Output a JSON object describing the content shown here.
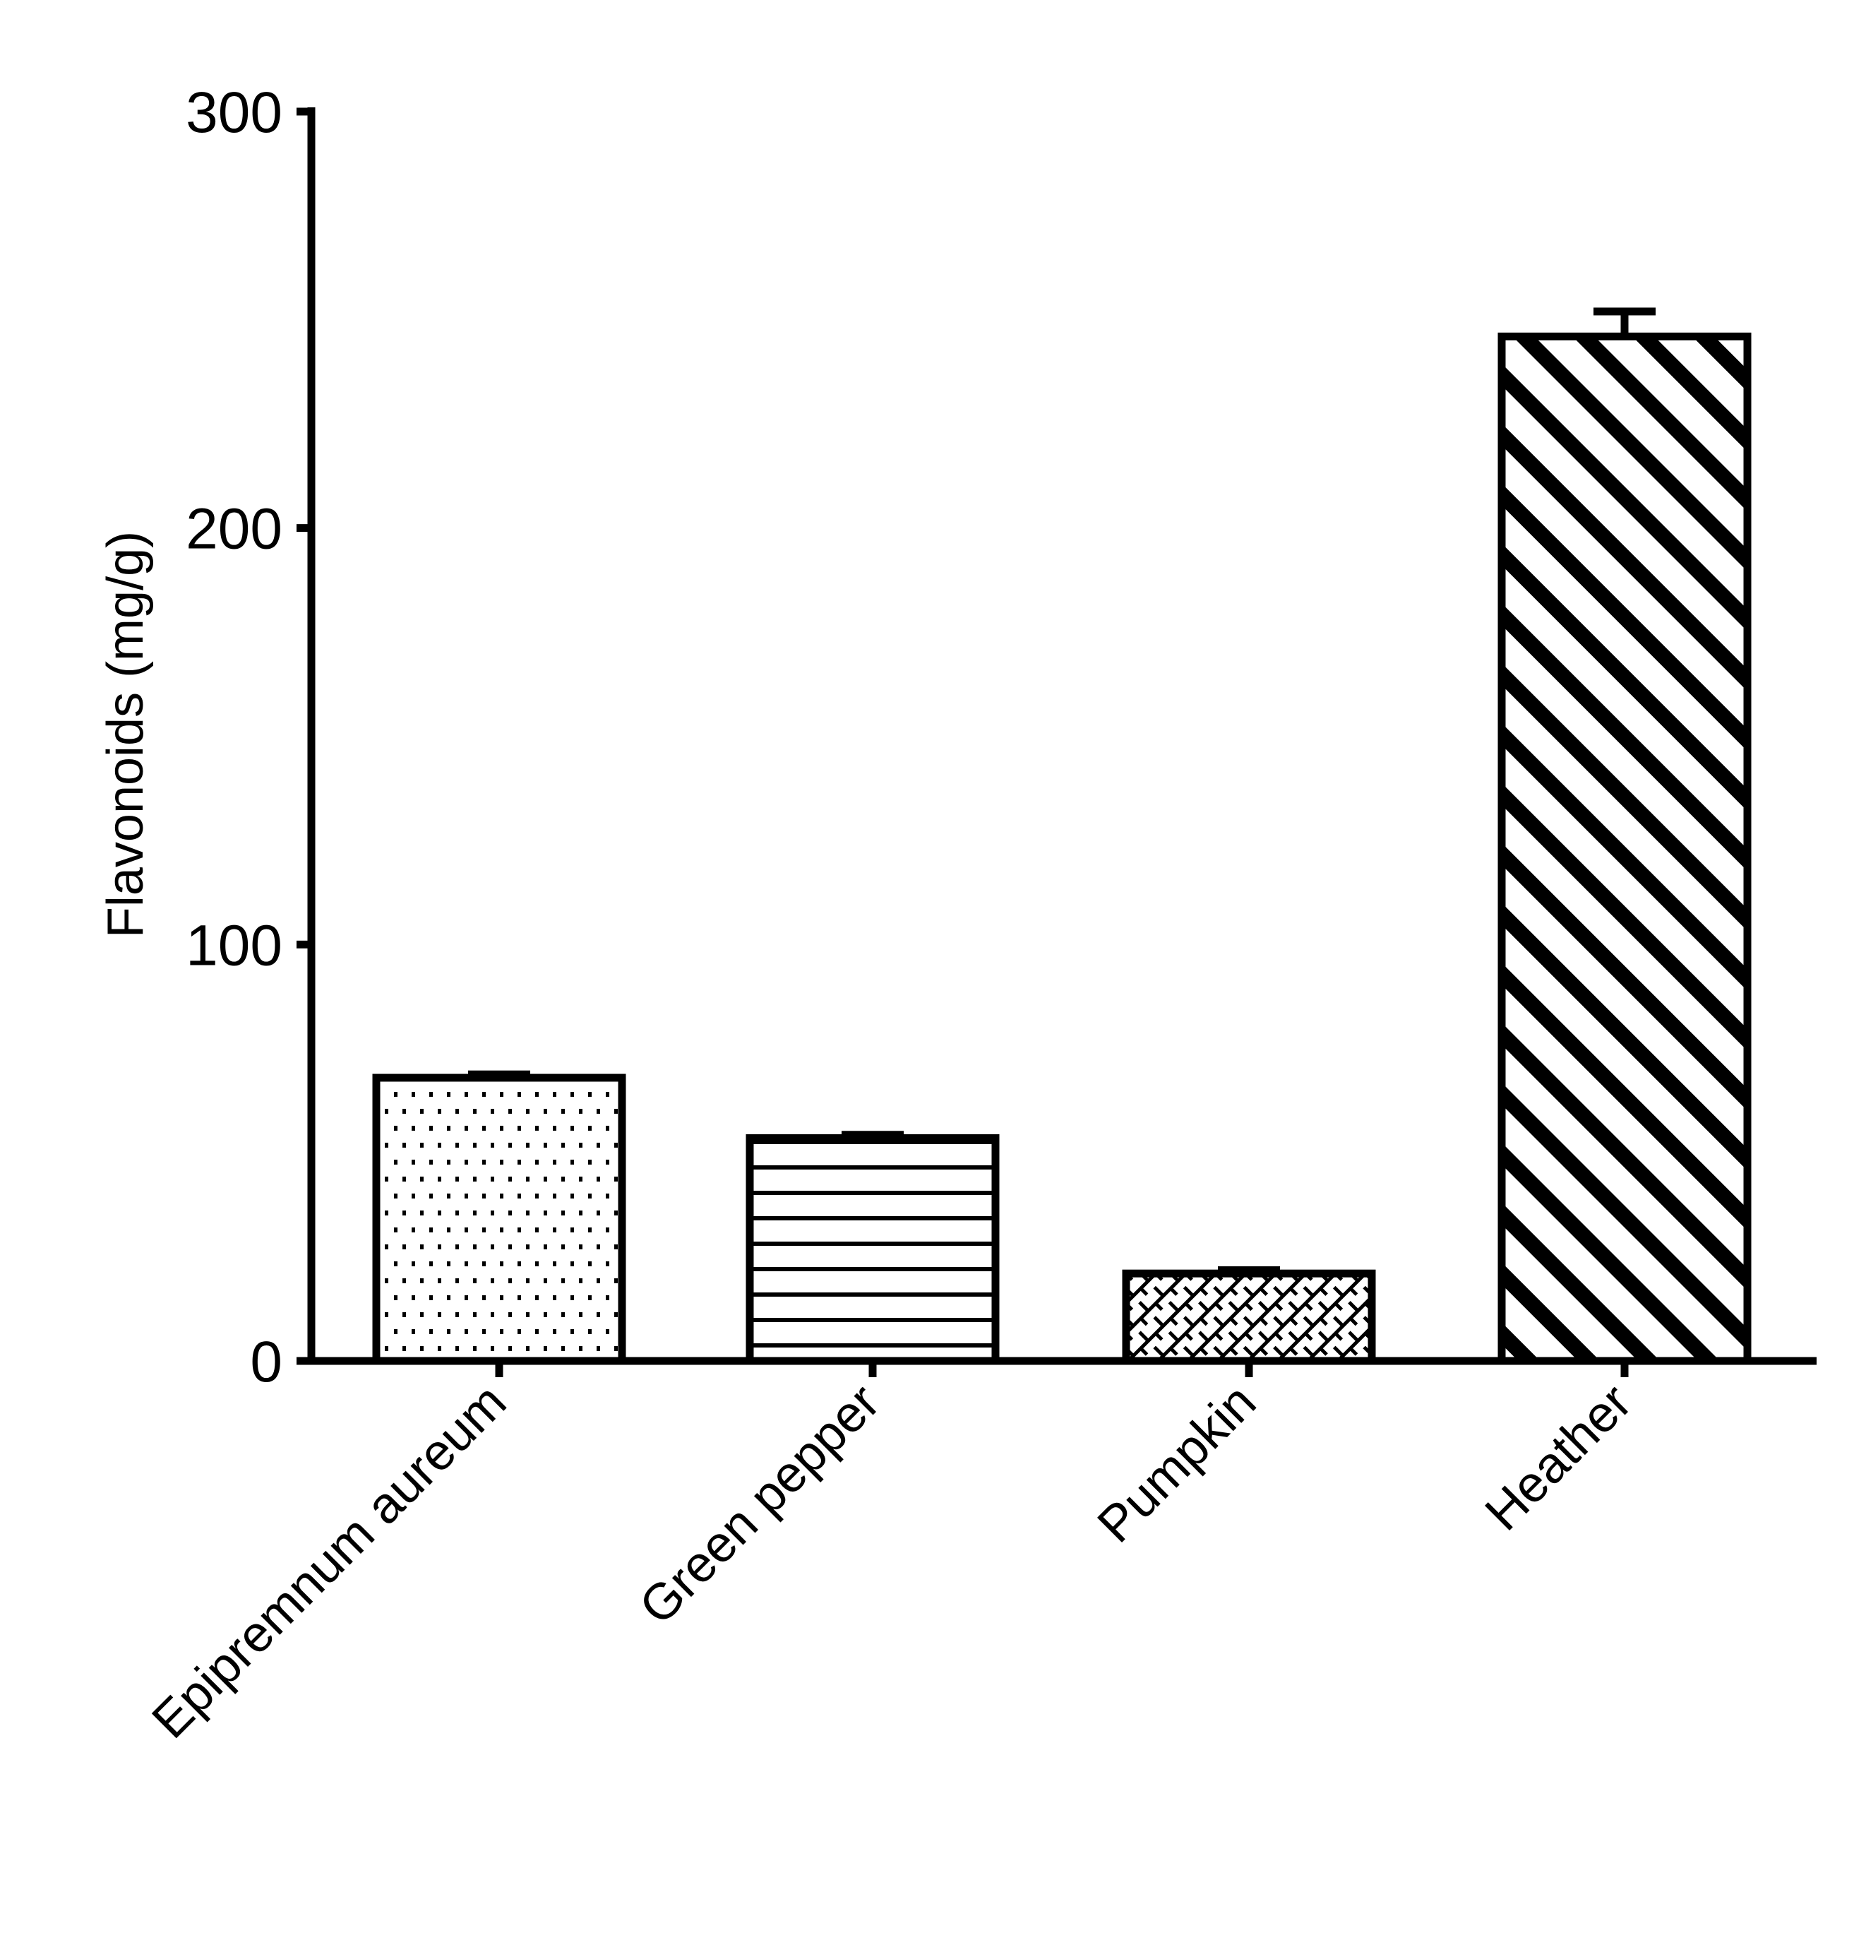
{
  "chart_data": {
    "type": "bar",
    "title": "",
    "xlabel": "",
    "ylabel": "Flavonoids (mg/g)",
    "ylim": [
      0,
      300
    ],
    "yticks": [
      "0",
      "100",
      "200",
      "300"
    ],
    "categories": [
      "Epipremnum aureum",
      "Green pepper",
      "Pumpkin",
      "Heather"
    ],
    "values": [
      68,
      53.5,
      21,
      246
    ],
    "error": [
      0.8,
      0.8,
      0.8,
      6
    ],
    "patterns": [
      "dots",
      "horizontal-lines",
      "brick-diagonal",
      "diagonal-stripes"
    ],
    "grid": false,
    "legend": "none",
    "colors": {
      "bar_stroke": "#000000",
      "bar_fill": "#ffffff",
      "background": "#ffffff"
    }
  }
}
